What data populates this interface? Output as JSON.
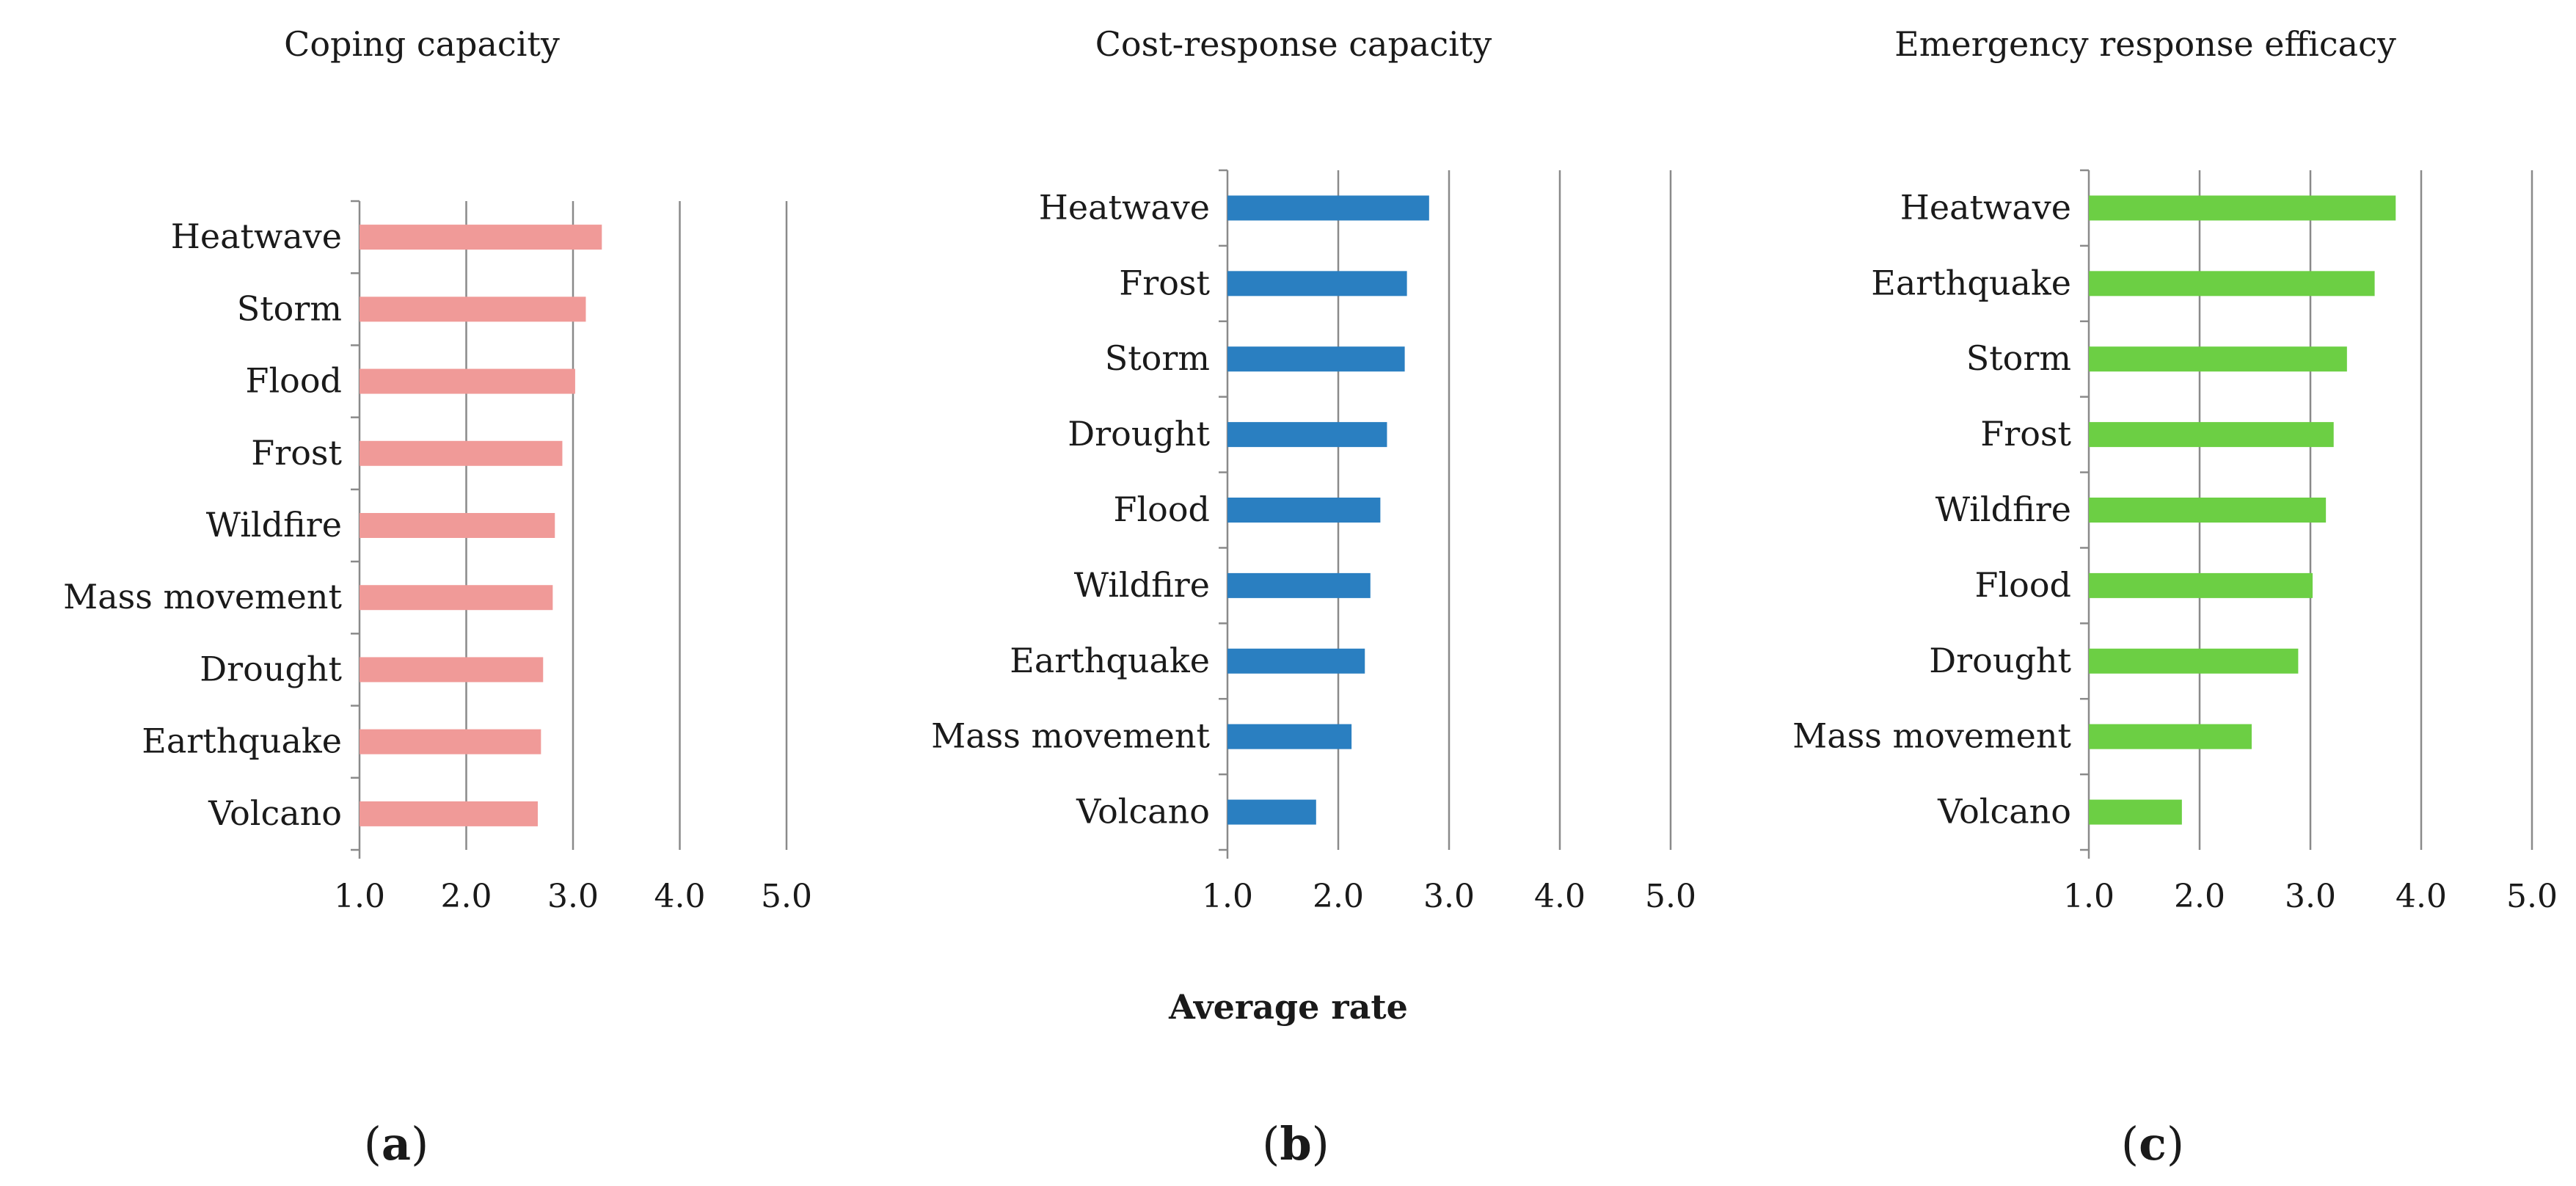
{
  "chart_data": [
    {
      "type": "bar",
      "orientation": "horizontal",
      "title": "Coping capacity",
      "panel_label": "a",
      "color": "#f09a98",
      "categories": [
        "Heatwave",
        "Storm",
        "Flood",
        "Frost",
        "Wildfire",
        "Mass movement",
        "Drought",
        "Earthquake",
        "Volcano"
      ],
      "values": [
        3.27,
        3.12,
        3.02,
        2.9,
        2.83,
        2.81,
        2.72,
        2.7,
        2.67
      ],
      "xlim": [
        1.0,
        5.0
      ],
      "xticks": [
        "1.0",
        "2.0",
        "3.0",
        "4.0",
        "5.0"
      ],
      "xlabel": "",
      "grid": "vertical"
    },
    {
      "type": "bar",
      "orientation": "horizontal",
      "title": "Cost-response capacity",
      "panel_label": "b",
      "color": "#2a7fc1",
      "categories": [
        "Heatwave",
        "Frost",
        "Storm",
        "Drought",
        "Flood",
        "Wildfire",
        "Earthquake",
        "Mass movement",
        "Volcano"
      ],
      "values": [
        2.82,
        2.62,
        2.6,
        2.44,
        2.38,
        2.29,
        2.24,
        2.12,
        1.8
      ],
      "xlim": [
        1.0,
        5.0
      ],
      "xticks": [
        "1.0",
        "2.0",
        "3.0",
        "4.0",
        "5.0"
      ],
      "xlabel": "Average rate",
      "grid": "vertical"
    },
    {
      "type": "bar",
      "orientation": "horizontal",
      "title": "Emergency response efficacy",
      "panel_label": "c",
      "color": "#6ccf44",
      "categories": [
        "Heatwave",
        "Earthquake",
        "Storm",
        "Frost",
        "Wildfire",
        "Flood",
        "Drought",
        "Mass movement",
        "Volcano"
      ],
      "values": [
        3.77,
        3.58,
        3.33,
        3.21,
        3.14,
        3.02,
        2.89,
        2.47,
        1.84
      ],
      "xlim": [
        1.0,
        5.0
      ],
      "xticks": [
        "1.0",
        "2.0",
        "3.0",
        "4.0",
        "5.0"
      ],
      "xlabel": "",
      "grid": "vertical"
    }
  ]
}
